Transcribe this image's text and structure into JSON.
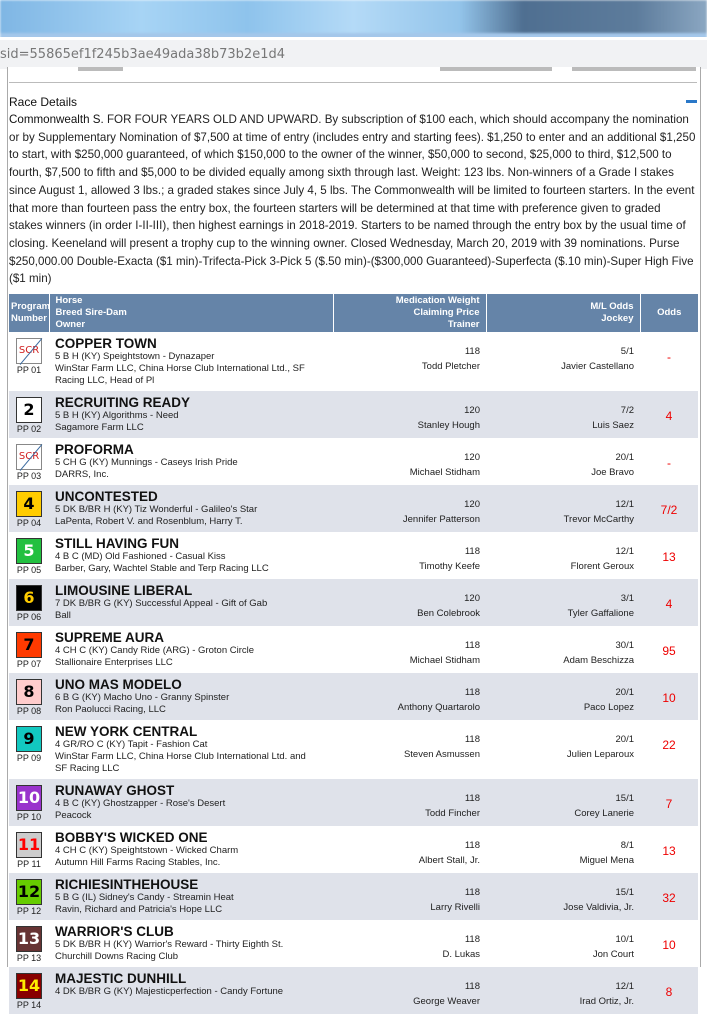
{
  "browser": {
    "url_fragment": "sid=55865ef1f245b3ae49ada38b73b2e1d4"
  },
  "race_details": {
    "title": "Race Details",
    "collapse_icon": "minus-icon",
    "race_name": "Commonwealth S.",
    "description": "FOR FOUR YEARS OLD AND UPWARD. By subscription of $100 each, which should accompany the nomination or by Supplementary Nomination of $7,500 at time of entry (includes entry and starting fees). $1,250 to enter and an additional $1,250 to start, with $250,000 guaranteed, of which $150,000 to the owner of the winner, $50,000 to second, $25,000 to third, $12,500 to fourth, $7,500 to fifth and $5,000 to be divided equally among sixth through last. Weight: 123 lbs. Non-winners of a Grade I stakes since August 1, allowed 3 lbs.; a graded stakes since July 4, 5 lbs. The Commonwealth will be limited to fourteen starters. In the event that more than fourteen pass the entry box, the fourteen starters will be determined at that time with preference given to graded stakes winners (in order I-II-III), then highest earnings in 2018-2019. Starters to be named through the entry box by the usual time of closing. Keeneland will present a trophy cup to the winning owner. Closed Wednesday, March 20, 2019 with 39 nominations. Purse $250,000.00 Double-Exacta ($1 min)-Trifecta-Pick 3-Pick 5 ($.50 min)-($300,000 Guaranteed)-Superfecta ($.10 min)-Super High Five ($1 min)"
  },
  "table": {
    "headers": {
      "program": [
        "Program",
        "Number"
      ],
      "horse": [
        "Horse",
        "Breed Sire-Dam",
        "Owner"
      ],
      "medication": [
        "Medication Weight",
        "Claiming Price",
        "Trainer"
      ],
      "ml": [
        "M/L Odds",
        "Jockey"
      ],
      "odds": "Odds"
    },
    "rows": [
      {
        "num": "SCR",
        "pp": "PP 01",
        "scratched": true,
        "name": "COPPER TOWN",
        "breed": "5 B H (KY) Speightstown - Dynazaper",
        "owner": "WinStar Farm LLC, China Horse Club International Ltd., SF Racing LLC, Head of Pl",
        "weight": "118",
        "trainer": "Todd Pletcher",
        "ml": "5/1",
        "jockey": "Javier Castellano",
        "odds": "-",
        "bg": "#ffffff",
        "fg": "#d02020"
      },
      {
        "num": "2",
        "pp": "PP 02",
        "name": "RECRUITING READY",
        "breed": "5 B H (KY) Algorithms - Need",
        "owner": "Sagamore Farm LLC",
        "weight": "120",
        "trainer": "Stanley Hough",
        "ml": "7/2",
        "jockey": "Luis Saez",
        "odds": "4",
        "bg": "#ffffff",
        "fg": "#000000"
      },
      {
        "num": "SCR",
        "pp": "PP 03",
        "scratched": true,
        "name": "PROFORMA",
        "breed": "5 CH G (KY) Munnings - Caseys Irish Pride",
        "owner": "DARRS, Inc.",
        "weight": "120",
        "trainer": "Michael Stidham",
        "ml": "20/1",
        "jockey": "Joe Bravo",
        "odds": "-",
        "bg": "#ffffff",
        "fg": "#d02020"
      },
      {
        "num": "4",
        "pp": "PP 04",
        "name": "UNCONTESTED",
        "breed": "5 DK B/BR H (KY) Tiz Wonderful - Galileo's Star",
        "owner": "LaPenta, Robert V. and Rosenblum, Harry T.",
        "weight": "120",
        "trainer": "Jennifer Patterson",
        "ml": "12/1",
        "jockey": "Trevor McCarthy",
        "odds": "7/2",
        "bg": "#ffcc00",
        "fg": "#000000"
      },
      {
        "num": "5",
        "pp": "PP 05",
        "name": "STILL HAVING FUN",
        "breed": "4 B C (MD) Old Fashioned - Casual Kiss",
        "owner": "Barber, Gary, Wachtel Stable and Terp Racing LLC",
        "weight": "118",
        "trainer": "Timothy Keefe",
        "ml": "12/1",
        "jockey": "Florent Geroux",
        "odds": "13",
        "bg": "#22c040",
        "fg": "#ffffff"
      },
      {
        "num": "6",
        "pp": "PP 06",
        "name": "LIMOUSINE LIBERAL",
        "breed": "7 DK B/BR G (KY) Successful Appeal - Gift of Gab",
        "owner": "Ball",
        "weight": "120",
        "trainer": "Ben Colebrook",
        "ml": "3/1",
        "jockey": "Tyler Gaffalione",
        "odds": "4",
        "bg": "#000000",
        "fg": "#ffcc00"
      },
      {
        "num": "7",
        "pp": "PP 07",
        "name": "SUPREME AURA",
        "breed": "4 CH C (KY) Candy Ride (ARG) - Groton Circle",
        "owner": "Stallionaire Enterprises LLC",
        "weight": "118",
        "trainer": "Michael Stidham",
        "ml": "30/1",
        "jockey": "Adam Beschizza",
        "odds": "95",
        "bg": "#ff3a00",
        "fg": "#000000"
      },
      {
        "num": "8",
        "pp": "PP 08",
        "name": "UNO MAS MODELO",
        "breed": "6 B G (KY) Macho Uno - Granny Spinster",
        "owner": "Ron Paolucci Racing, LLC",
        "weight": "118",
        "trainer": "Anthony Quartarolo",
        "ml": "20/1",
        "jockey": "Paco Lopez",
        "odds": "10",
        "bg": "#ffcccc",
        "fg": "#000000"
      },
      {
        "num": "9",
        "pp": "PP 09",
        "name": "NEW YORK CENTRAL",
        "breed": "4 GR/RO C (KY) Tapit - Fashion Cat",
        "owner": "WinStar Farm LLC, China Horse Club International Ltd. and SF Racing LLC",
        "weight": "118",
        "trainer": "Steven Asmussen",
        "ml": "20/1",
        "jockey": "Julien Leparoux",
        "odds": "22",
        "bg": "#12c8c0",
        "fg": "#000000"
      },
      {
        "num": "10",
        "pp": "PP 10",
        "name": "RUNAWAY GHOST",
        "breed": "4 B C (KY) Ghostzapper - Rose's Desert",
        "owner": "Peacock",
        "weight": "118",
        "trainer": "Todd Fincher",
        "ml": "15/1",
        "jockey": "Corey Lanerie",
        "odds": "7",
        "bg": "#9933cc",
        "fg": "#ffffff"
      },
      {
        "num": "11",
        "pp": "PP 11",
        "name": "BOBBY'S WICKED ONE",
        "breed": "4 CH C (KY) Speightstown - Wicked Charm",
        "owner": "Autumn Hill Farms Racing Stables, Inc.",
        "weight": "118",
        "trainer": "Albert Stall, Jr.",
        "ml": "8/1",
        "jockey": "Miguel Mena",
        "odds": "13",
        "bg": "#cccccc",
        "fg": "#ff0000"
      },
      {
        "num": "12",
        "pp": "PP 12",
        "name": "RICHIESINTHEHOUSE",
        "breed": "5 B G (IL) Sidney's Candy - Streamin Heat",
        "owner": "Ravin, Richard and Patricia's Hope LLC",
        "weight": "118",
        "trainer": "Larry Rivelli",
        "ml": "15/1",
        "jockey": "Jose Valdivia, Jr.",
        "odds": "32",
        "bg": "#66cc00",
        "fg": "#000000"
      },
      {
        "num": "13",
        "pp": "PP 13",
        "name": "WARRIOR'S CLUB",
        "breed": "5 DK B/BR H (KY) Warrior's Reward - Thirty Eighth St.",
        "owner": "Churchill Downs Racing Club",
        "weight": "118",
        "trainer": "D. Lukas",
        "ml": "10/1",
        "jockey": "Jon Court",
        "odds": "10",
        "bg": "#663333",
        "fg": "#ffffff"
      },
      {
        "num": "14",
        "pp": "PP 14",
        "name": "MAJESTIC DUNHILL",
        "breed": "4 DK B/BR G (KY) Majesticperfection - Candy Fortune",
        "owner": "",
        "weight": "118",
        "trainer": "George Weaver",
        "ml": "12/1",
        "jockey": "Irad Ortiz, Jr.",
        "odds": "8",
        "bg": "#880000",
        "fg": "#ffee00"
      }
    ]
  }
}
